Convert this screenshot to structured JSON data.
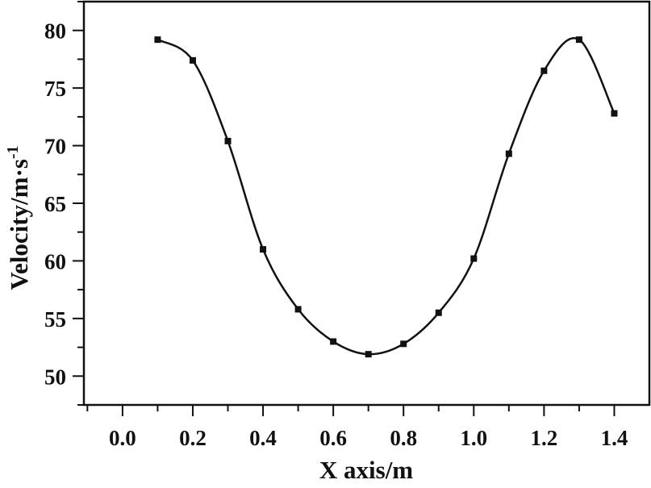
{
  "chart_data": {
    "type": "line",
    "xlabel": "X axis/m",
    "ylabel_main": "Velocity/m·s",
    "ylabel_sup": "-1",
    "xlim": [
      -0.11,
      1.5
    ],
    "ylim": [
      47.5,
      82.5
    ],
    "x_ticks": [
      0.0,
      0.2,
      0.4,
      0.6,
      0.8,
      1.0,
      1.2,
      1.4
    ],
    "x_tick_labels": [
      "0.0",
      "0.2",
      "0.4",
      "0.6",
      "0.8",
      "1.0",
      "1.2",
      "1.4"
    ],
    "y_ticks": [
      50,
      55,
      60,
      65,
      70,
      75,
      80
    ],
    "y_tick_labels": [
      "50",
      "55",
      "60",
      "65",
      "70",
      "75",
      "80"
    ],
    "grid": false,
    "series": [
      {
        "marker": "square",
        "line": "smooth",
        "color": "#111111",
        "x": [
          0.1,
          0.2,
          0.3,
          0.4,
          0.5,
          0.6,
          0.7,
          0.8,
          0.9,
          1.0,
          1.1,
          1.2,
          1.3,
          1.4
        ],
        "y": [
          79.2,
          77.4,
          70.4,
          61.0,
          55.8,
          53.0,
          51.9,
          52.8,
          55.5,
          60.2,
          69.3,
          76.5,
          79.2,
          72.8
        ]
      }
    ]
  }
}
